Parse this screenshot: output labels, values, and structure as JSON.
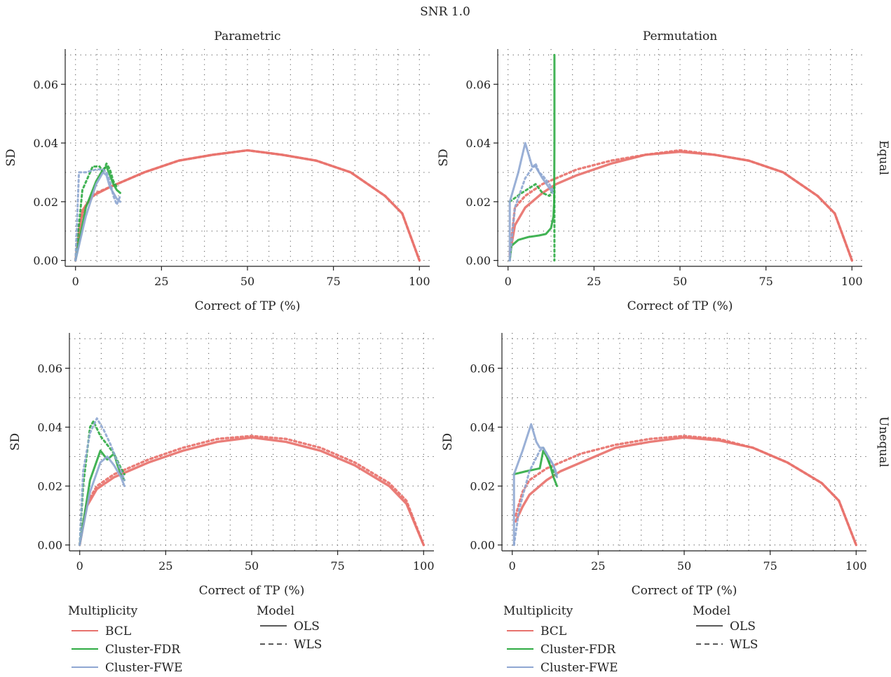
{
  "figure": {
    "title": "SNR 1.0",
    "col_labels": [
      "Parametric",
      "Permutation"
    ],
    "row_labels": [
      "Equal",
      "Unequal"
    ]
  },
  "legend": {
    "multiplicity_title": "Multiplicity",
    "multiplicity_items": [
      {
        "label": "BCL",
        "color": "#e8726d"
      },
      {
        "label": "Cluster-FDR",
        "color": "#2eab43"
      },
      {
        "label": "Cluster-FWE",
        "color": "#8fa7d2"
      }
    ],
    "model_title": "Model",
    "model_items": [
      {
        "label": "OLS",
        "dash": "solid"
      },
      {
        "label": "WLS",
        "dash": "dashed"
      }
    ]
  },
  "colors": {
    "BCL": "#e8726d",
    "Cluster-FDR": "#2eab43",
    "Cluster-FWE": "#8fa7d2"
  },
  "chart_data": [
    {
      "type": "line",
      "panel": "Parametric / Equal",
      "xlabel": "Correct of TP (%)",
      "ylabel": "SD",
      "xlim": [
        -3,
        103
      ],
      "ylim": [
        -0.002,
        0.072
      ],
      "xticks": [
        0,
        25,
        50,
        75,
        100
      ],
      "yticks": [
        0.0,
        0.02,
        0.04,
        0.06
      ],
      "grid": true,
      "series": [
        {
          "name": "BCL",
          "model": "OLS",
          "x": [
            0,
            2,
            5,
            10,
            20,
            30,
            40,
            50,
            60,
            70,
            80,
            90,
            95,
            100
          ],
          "y": [
            0,
            0.017,
            0.022,
            0.025,
            0.03,
            0.034,
            0.036,
            0.0375,
            0.036,
            0.034,
            0.03,
            0.022,
            0.016,
            0
          ]
        },
        {
          "name": "BCL",
          "model": "WLS",
          "x": [
            0,
            1,
            3,
            6,
            10,
            20,
            30,
            40,
            50,
            60,
            70,
            80,
            90,
            95,
            100
          ],
          "y": [
            0,
            0.012,
            0.019,
            0.023,
            0.025,
            0.03,
            0.034,
            0.036,
            0.0375,
            0.036,
            0.034,
            0.03,
            0.022,
            0.016,
            0
          ]
        },
        {
          "name": "Cluster-FDR",
          "model": "OLS",
          "x": [
            0,
            3,
            6,
            8,
            9,
            10,
            11,
            12,
            13
          ],
          "y": [
            0,
            0.018,
            0.027,
            0.031,
            0.032,
            0.029,
            0.026,
            0.024,
            0.023
          ]
        },
        {
          "name": "Cluster-FDR",
          "model": "WLS",
          "x": [
            0,
            2,
            5,
            7,
            8,
            9,
            10,
            11,
            12
          ],
          "y": [
            0,
            0.024,
            0.032,
            0.032,
            0.03,
            0.033,
            0.031,
            0.027,
            0.025
          ]
        },
        {
          "name": "Cluster-FWE",
          "model": "OLS",
          "x": [
            0,
            3,
            6,
            8,
            9,
            10,
            11,
            12,
            13
          ],
          "y": [
            0,
            0.015,
            0.026,
            0.03,
            0.029,
            0.025,
            0.023,
            0.021,
            0.02
          ]
        },
        {
          "name": "Cluster-FWE",
          "model": "WLS",
          "x": [
            0,
            1,
            3,
            6,
            8,
            9,
            10,
            11,
            12,
            13
          ],
          "y": [
            0,
            0.03,
            0.03,
            0.031,
            0.031,
            0.03,
            0.027,
            0.022,
            0.019,
            0.022
          ]
        }
      ]
    },
    {
      "type": "line",
      "panel": "Permutation / Equal",
      "xlabel": "Correct of TP (%)",
      "ylabel": "SD",
      "xlim": [
        -3,
        103
      ],
      "ylim": [
        -0.002,
        0.072
      ],
      "xticks": [
        0,
        25,
        50,
        75,
        100
      ],
      "yticks": [
        0.0,
        0.02,
        0.04,
        0.06
      ],
      "grid": true,
      "series": [
        {
          "name": "BCL",
          "model": "OLS",
          "x": [
            0.5,
            2,
            5,
            10,
            14,
            20,
            30,
            40,
            50,
            60,
            70,
            80,
            90,
            95,
            100
          ],
          "y": [
            0.002,
            0.012,
            0.018,
            0.023,
            0.026,
            0.029,
            0.033,
            0.036,
            0.037,
            0.036,
            0.034,
            0.03,
            0.022,
            0.016,
            0
          ]
        },
        {
          "name": "BCL",
          "model": "WLS",
          "x": [
            0.5,
            2,
            5,
            10,
            14,
            20,
            30,
            40,
            50,
            60,
            70,
            80,
            90,
            95,
            100
          ],
          "y": [
            0.002,
            0.018,
            0.022,
            0.026,
            0.028,
            0.031,
            0.034,
            0.036,
            0.0375,
            0.036,
            0.034,
            0.03,
            0.022,
            0.016,
            0
          ]
        },
        {
          "name": "Cluster-FDR",
          "model": "OLS",
          "x": [
            0.5,
            1,
            3,
            6,
            9,
            11,
            12.5,
            13.2,
            13.4,
            13.5,
            13.5
          ],
          "y": [
            0,
            0.005,
            0.007,
            0.008,
            0.0085,
            0.009,
            0.011,
            0.015,
            0.02,
            0.04,
            0.07
          ]
        },
        {
          "name": "Cluster-FDR",
          "model": "WLS",
          "x": [
            0.5,
            4,
            8,
            10,
            12,
            13.5,
            13.5
          ],
          "y": [
            0.02,
            0.023,
            0.026,
            0.023,
            0.022,
            0.025,
            0
          ]
        },
        {
          "name": "Cluster-FWE",
          "model": "OLS",
          "x": [
            0.5,
            0.5,
            3,
            5,
            7,
            8,
            10,
            13
          ],
          "y": [
            0,
            0.02,
            0.03,
            0.04,
            0.032,
            0.032,
            0.028,
            0.023
          ]
        },
        {
          "name": "Cluster-FWE",
          "model": "WLS",
          "x": [
            0.5,
            2,
            5,
            8,
            9,
            10,
            12,
            13
          ],
          "y": [
            0,
            0.018,
            0.028,
            0.033,
            0.03,
            0.029,
            0.026,
            0.024
          ]
        }
      ]
    },
    {
      "type": "line",
      "panel": "Parametric / Unequal",
      "xlabel": "Correct of TP (%)",
      "ylabel": "SD",
      "xlim": [
        -3,
        103
      ],
      "ylim": [
        -0.002,
        0.072
      ],
      "xticks": [
        0,
        25,
        50,
        75,
        100
      ],
      "yticks": [
        0.0,
        0.02,
        0.04,
        0.06
      ],
      "grid": true,
      "series": [
        {
          "name": "BCL",
          "model": "OLS",
          "x": [
            0,
            2,
            5,
            10,
            14,
            20,
            30,
            40,
            50,
            60,
            70,
            80,
            90,
            95,
            100
          ],
          "y": [
            0,
            0.013,
            0.019,
            0.023,
            0.025,
            0.028,
            0.032,
            0.035,
            0.0365,
            0.035,
            0.032,
            0.027,
            0.02,
            0.014,
            0
          ]
        },
        {
          "name": "BCL",
          "model": "WLS",
          "x": [
            0,
            2,
            5,
            10,
            14,
            20,
            30,
            40,
            50,
            60,
            70,
            80,
            90,
            95,
            100
          ],
          "y": [
            0,
            0.014,
            0.02,
            0.024,
            0.026,
            0.029,
            0.033,
            0.036,
            0.037,
            0.036,
            0.033,
            0.028,
            0.021,
            0.015,
            0
          ]
        },
        {
          "name": "Cluster-FDR",
          "model": "OLS",
          "x": [
            0,
            3,
            6,
            8,
            10,
            11,
            12,
            13
          ],
          "y": [
            0,
            0.022,
            0.032,
            0.029,
            0.031,
            0.027,
            0.024,
            0.022
          ]
        },
        {
          "name": "Cluster-FDR",
          "model": "WLS",
          "x": [
            0,
            1,
            3,
            4,
            6,
            8,
            10,
            12,
            13
          ],
          "y": [
            0,
            0.02,
            0.04,
            0.042,
            0.037,
            0.034,
            0.031,
            0.026,
            0.024
          ]
        },
        {
          "name": "Cluster-FWE",
          "model": "OLS",
          "x": [
            0,
            3,
            6,
            8,
            10,
            12,
            13
          ],
          "y": [
            0,
            0.018,
            0.028,
            0.03,
            0.027,
            0.023,
            0.02
          ]
        },
        {
          "name": "Cluster-FWE",
          "model": "WLS",
          "x": [
            0,
            1,
            3,
            5,
            7,
            9,
            11,
            13
          ],
          "y": [
            0,
            0.025,
            0.038,
            0.043,
            0.039,
            0.034,
            0.028,
            0.022
          ]
        }
      ]
    },
    {
      "type": "line",
      "panel": "Permutation / Unequal",
      "xlabel": "Correct of TP (%)",
      "ylabel": "SD",
      "xlim": [
        -3,
        103
      ],
      "ylim": [
        -0.002,
        0.072
      ],
      "xticks": [
        0,
        25,
        50,
        75,
        100
      ],
      "yticks": [
        0.0,
        0.02,
        0.04,
        0.06
      ],
      "grid": true,
      "series": [
        {
          "name": "BCL",
          "model": "OLS",
          "x": [
            1,
            3,
            5,
            10,
            14,
            20,
            30,
            40,
            50,
            60,
            70,
            80,
            90,
            95,
            100
          ],
          "y": [
            0.008,
            0.013,
            0.017,
            0.022,
            0.025,
            0.028,
            0.033,
            0.035,
            0.0365,
            0.0355,
            0.033,
            0.028,
            0.021,
            0.015,
            0
          ]
        },
        {
          "name": "BCL",
          "model": "WLS",
          "x": [
            1,
            3,
            5,
            10,
            14,
            20,
            30,
            40,
            50,
            60,
            70,
            80,
            90,
            95,
            100
          ],
          "y": [
            0.01,
            0.018,
            0.022,
            0.026,
            0.028,
            0.031,
            0.034,
            0.036,
            0.037,
            0.036,
            0.033,
            0.028,
            0.021,
            0.015,
            0
          ]
        },
        {
          "name": "Cluster-FDR",
          "model": "OLS",
          "x": [
            0.5,
            4,
            8,
            9,
            10,
            11,
            12,
            13
          ],
          "y": [
            0.024,
            0.025,
            0.026,
            0.032,
            0.03,
            0.027,
            0.023,
            0.02
          ]
        },
        {
          "name": "Cluster-FDR",
          "model": "WLS",
          "x": [
            9,
            10,
            11,
            12,
            13
          ],
          "y": [
            0.033,
            0.031,
            0.027,
            0.025,
            0.023
          ]
        },
        {
          "name": "Cluster-FWE",
          "model": "OLS",
          "x": [
            0.5,
            0.5,
            3,
            5.5,
            7,
            8,
            9,
            10,
            12,
            13
          ],
          "y": [
            0,
            0.024,
            0.032,
            0.041,
            0.035,
            0.033,
            0.033,
            0.031,
            0.027,
            0.023
          ]
        },
        {
          "name": "Cluster-FWE",
          "model": "WLS",
          "x": [
            0.5,
            2,
            5,
            8,
            9,
            10,
            12,
            13
          ],
          "y": [
            0,
            0.012,
            0.025,
            0.032,
            0.033,
            0.031,
            0.027,
            0.024
          ]
        }
      ]
    }
  ]
}
